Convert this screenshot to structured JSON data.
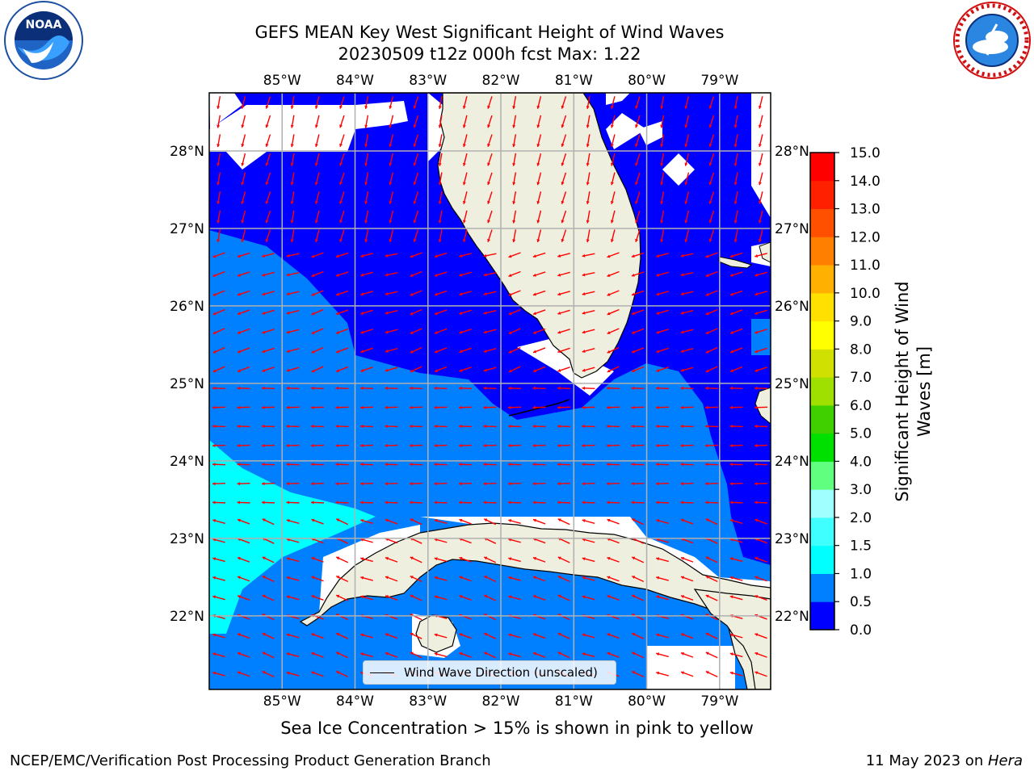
{
  "title_line1": "GEFS MEAN Key West Significant Height of Wind Waves",
  "title_line2": "20230509 t12z 000h fcst   Max: 1.22",
  "map": {
    "lon_labels": [
      "85°W",
      "84°W",
      "83°W",
      "82°W",
      "81°W",
      "80°W",
      "79°W"
    ],
    "lon_values": [
      -85,
      -84,
      -83,
      -82,
      -81,
      -80,
      -79
    ],
    "lat_labels": [
      "28°N",
      "27°N",
      "26°N",
      "25°N",
      "24°N",
      "23°N",
      "22°N"
    ],
    "lat_values": [
      28,
      27,
      26,
      25,
      24,
      23,
      22
    ],
    "extent": {
      "lon_min": -86.0,
      "lon_max": -78.3,
      "lat_min": 21.05,
      "lat_max": 28.75
    },
    "gridlines": true
  },
  "legend": {
    "label": "Wind Wave Direction (unscaled)",
    "placement": "lower-center"
  },
  "colorbar": {
    "label": "Significant Height of Wind Waves [m]",
    "label_line1": "Significant Height of Wind",
    "label_line2": "Waves [m]",
    "tick_labels": [
      "15.0",
      "14.0",
      "13.0",
      "12.0",
      "11.0",
      "10.0",
      "9.0",
      "8.0",
      "7.0",
      "6.0",
      "5.0",
      "4.0",
      "3.0",
      "2.0",
      "1.5",
      "1.0",
      "0.5",
      "0.0"
    ],
    "levels": [
      0.0,
      0.5,
      1.0,
      1.5,
      2.0,
      3.0,
      4.0,
      5.0,
      6.0,
      7.0,
      8.0,
      9.0,
      10.0,
      11.0,
      12.0,
      13.0,
      14.0,
      15.0
    ],
    "colors": [
      "#0000ff",
      "#0080ff",
      "#00ffff",
      "#40ffff",
      "#a0ffff",
      "#60ff80",
      "#00e000",
      "#40d000",
      "#a0e000",
      "#d0e000",
      "#ffff00",
      "#ffe000",
      "#ffb000",
      "#ff8000",
      "#ff5000",
      "#ff2000",
      "#ff0000"
    ]
  },
  "colors": {
    "land": "#efefdf",
    "wave_low": "#0000ff",
    "wave_mid": "#0080ff",
    "wave_high": "#00ffff",
    "arrows": "#ff0000",
    "grid": "#b0b0b0"
  },
  "logos": {
    "left": {
      "icon": "noaa-logo-icon",
      "text": "NOAA"
    },
    "right": {
      "icon": "nws-logo-icon"
    }
  },
  "note": "Sea Ice Concentration > 15% is shown in pink to yellow",
  "footer_left": "NCEP/EMC/Verification Post Processing Product Generation Branch",
  "footer_right_prefix": "11 May 2023 on ",
  "footer_right_host": "Hera"
}
